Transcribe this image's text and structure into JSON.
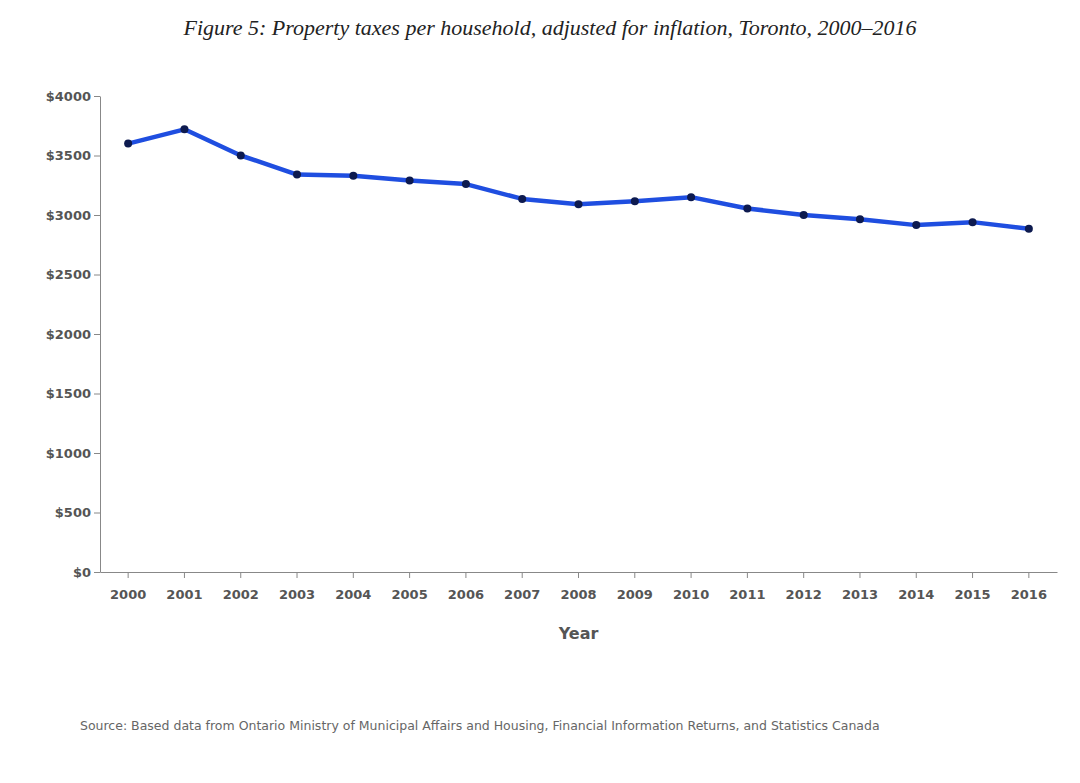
{
  "chart_data": {
    "type": "line",
    "title": "Figure 5: Property taxes per household, adjusted for inflation, Toronto, 2000–2016",
    "x_label": "Year",
    "source": "Source: Based data from Ontario Ministry of Municipal Affairs and Housing, Financial Information Returns, and Statistics Canada",
    "categories": [
      "2000",
      "2001",
      "2002",
      "2003",
      "2004",
      "2005",
      "2006",
      "2007",
      "2008",
      "2009",
      "2010",
      "2011",
      "2012",
      "2013",
      "2014",
      "2015",
      "2016"
    ],
    "values": [
      3600,
      3720,
      3500,
      3340,
      3330,
      3290,
      3260,
      3135,
      3090,
      3115,
      3150,
      3055,
      3000,
      2965,
      2915,
      2940,
      2885
    ],
    "color": "#1f4ee0",
    "marker": "circle",
    "ylim": [
      0,
      4000
    ],
    "yticks": [
      {
        "value": 0,
        "label": "$0"
      },
      {
        "value": 500,
        "label": "$500"
      },
      {
        "value": 1000,
        "label": "$1000"
      },
      {
        "value": 1500,
        "label": "$1500"
      },
      {
        "value": 2000,
        "label": "$2000"
      },
      {
        "value": 2500,
        "label": "$2500"
      },
      {
        "value": 3000,
        "label": "$3000"
      },
      {
        "value": 3500,
        "label": "$3500"
      },
      {
        "value": 4000,
        "label": "$4000"
      }
    ],
    "grid": false
  }
}
